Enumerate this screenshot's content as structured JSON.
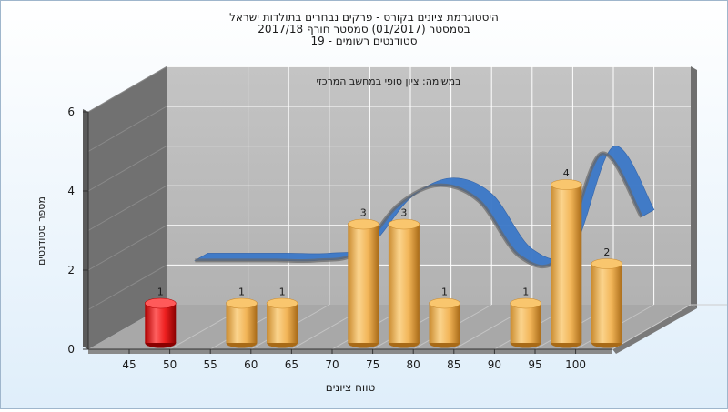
{
  "chart_data": {
    "type": "bar",
    "title_lines": [
      "היסטוגרמת ציונים בקורס - פרקים נבחרים בתולדות ישראל",
      "בסמסטר  (01/2017)  סמסטר חורף 2017/18",
      "סטודנטים רשומים - 19"
    ],
    "subtitle": "במשימה: ציון סופי במחשב המרכזי",
    "xlabel": "טווח ציונים",
    "ylabel": "מספר סטודנטים",
    "x_tick_labels": [
      "45",
      "50",
      "55",
      "60",
      "65",
      "70",
      "75",
      "80",
      "85",
      "90",
      "95",
      "100"
    ],
    "y_tick_labels": [
      "0",
      "2",
      "4",
      "6"
    ],
    "ylim": [
      0,
      6
    ],
    "bars": [
      {
        "label": "1",
        "x": 47.5,
        "value": 1,
        "highlight": true
      },
      {
        "label": "1",
        "x": 57.5,
        "value": 1
      },
      {
        "label": "1",
        "x": 62.5,
        "value": 1
      },
      {
        "label": "3",
        "x": 72.5,
        "value": 3
      },
      {
        "label": "3",
        "x": 77.5,
        "value": 3
      },
      {
        "label": "1",
        "x": 82.5,
        "value": 1
      },
      {
        "label": "1",
        "x": 92.5,
        "value": 1
      },
      {
        "label": "4",
        "x": 97.5,
        "value": 4
      },
      {
        "label": "2",
        "x": 102.5,
        "value": 2
      }
    ],
    "trend": {
      "x": [
        47.5,
        52.5,
        57.5,
        62.5,
        67.5,
        72.5,
        77.5,
        82.5,
        87.5,
        92.5,
        97.5,
        102.5
      ],
      "values": [
        1.6,
        1.6,
        1.6,
        1.6,
        1.8,
        3.0,
        3.5,
        3.1,
        1.7,
        1.7,
        4.3,
        2.7
      ]
    },
    "grid": true,
    "colors": {
      "bar": "#e7a747",
      "highlight_bar": "#e11a1a",
      "ribbon": "#3b78c8",
      "ribbon_shade": "#686868",
      "back_wall": "#b9b9b9",
      "left_wall": "#6e6e6e",
      "floor": "#a6a6a6",
      "grid": "#ffffff"
    }
  }
}
